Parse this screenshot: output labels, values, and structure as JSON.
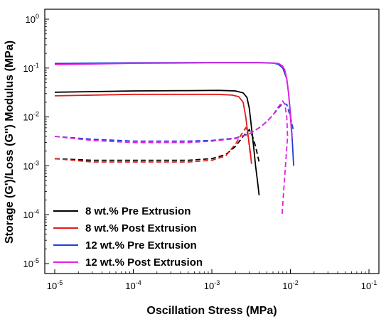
{
  "chart_data": {
    "type": "line",
    "xlabel": "Oscillation Stress (MPa)",
    "ylabel": "Storage (G')/Loss (G'') Modulus (MPa)",
    "xscale": "log",
    "yscale": "log",
    "xlim": [
      1e-05,
      0.1
    ],
    "ylim": [
      1e-05,
      1
    ],
    "x_ticks": [
      {
        "base": "10",
        "exp": "-5",
        "value": 1e-05
      },
      {
        "base": "10",
        "exp": "-4",
        "value": 0.0001
      },
      {
        "base": "10",
        "exp": "-3",
        "value": 0.001
      },
      {
        "base": "10",
        "exp": "-2",
        "value": 0.01
      },
      {
        "base": "10",
        "exp": "-1",
        "value": 0.1
      }
    ],
    "y_ticks": [
      {
        "base": "10",
        "exp": "-5",
        "value": 1e-05
      },
      {
        "base": "10",
        "exp": "-4",
        "value": 0.0001
      },
      {
        "base": "10",
        "exp": "-3",
        "value": 0.001
      },
      {
        "base": "10",
        "exp": "-2",
        "value": 0.01
      },
      {
        "base": "10",
        "exp": "-1",
        "value": 0.1
      },
      {
        "base": "10",
        "exp": "0",
        "value": 1
      }
    ],
    "legend_position": "bottom-left",
    "grid": false,
    "series": [
      {
        "name": "8 wt.% Pre Extrusion",
        "color": "#000000",
        "storage": {
          "x": [
            1e-05,
            0.0001,
            0.0005,
            0.0012,
            0.002,
            0.0025,
            0.0028,
            0.003,
            0.0032,
            0.0034,
            0.0036,
            0.0038,
            0.004
          ],
          "y": [
            0.032,
            0.034,
            0.0345,
            0.035,
            0.034,
            0.031,
            0.025,
            0.015,
            0.006,
            0.0025,
            0.001,
            0.0005,
            0.00025
          ]
        },
        "loss": {
          "x": [
            1e-05,
            3e-05,
            0.0001,
            0.0005,
            0.001,
            0.0015,
            0.002,
            0.0025,
            0.003,
            0.0033,
            0.0036,
            0.004
          ],
          "y": [
            0.0014,
            0.0013,
            0.0013,
            0.0013,
            0.0014,
            0.0017,
            0.0025,
            0.004,
            0.0055,
            0.004,
            0.0025,
            0.0012
          ]
        }
      },
      {
        "name": "8 wt.% Post Extrusion",
        "color": "#e31a1c",
        "storage": {
          "x": [
            1e-05,
            0.0001,
            0.0005,
            0.0012,
            0.0018,
            0.0022,
            0.0025,
            0.0027,
            0.0029,
            0.0031,
            0.0032
          ],
          "y": [
            0.027,
            0.029,
            0.029,
            0.029,
            0.028,
            0.026,
            0.02,
            0.01,
            0.004,
            0.0018,
            0.0011
          ]
        },
        "loss": {
          "x": [
            1e-05,
            3e-05,
            0.0001,
            0.0005,
            0.001,
            0.0015,
            0.002,
            0.0024,
            0.0027,
            0.0029,
            0.0031
          ],
          "y": [
            0.0014,
            0.0012,
            0.0012,
            0.0012,
            0.0013,
            0.0016,
            0.0028,
            0.0045,
            0.006,
            0.004,
            0.0016
          ]
        }
      },
      {
        "name": "12 wt.% Pre Extrusion",
        "color": "#1f3fd9",
        "storage": {
          "x": [
            1e-05,
            0.0001,
            0.001,
            0.004,
            0.006,
            0.007,
            0.008,
            0.009,
            0.0095,
            0.01,
            0.0105,
            0.011
          ],
          "y": [
            0.124,
            0.128,
            0.13,
            0.13,
            0.127,
            0.12,
            0.1,
            0.06,
            0.03,
            0.012,
            0.004,
            0.001
          ]
        },
        "loss": {
          "x": [
            1e-05,
            3e-05,
            0.0001,
            0.0005,
            0.001,
            0.002,
            0.003,
            0.004,
            0.005,
            0.006,
            0.007,
            0.008,
            0.009,
            0.01,
            0.011
          ],
          "y": [
            0.004,
            0.0035,
            0.0032,
            0.0032,
            0.0033,
            0.0037,
            0.0045,
            0.006,
            0.008,
            0.011,
            0.015,
            0.019,
            0.018,
            0.01,
            0.005
          ]
        }
      },
      {
        "name": "12 wt.% Post Extrusion",
        "color": "#e41ee4",
        "storage": {
          "x": [
            1e-05,
            0.0001,
            0.001,
            0.004,
            0.007,
            0.008,
            0.0085,
            0.009,
            0.0095,
            0.01,
            0.0105
          ],
          "y": [
            0.118,
            0.125,
            0.128,
            0.128,
            0.125,
            0.11,
            0.09,
            0.06,
            0.03,
            0.01,
            0.0035
          ]
        },
        "loss": {
          "x": [
            1e-05,
            3e-05,
            0.0001,
            0.0005,
            0.001,
            0.002,
            0.003,
            0.004,
            0.005,
            0.006,
            0.007,
            0.008,
            0.0085,
            0.009,
            0.0092,
            0.0088,
            0.0083,
            0.0078
          ],
          "y": [
            0.004,
            0.0033,
            0.003,
            0.003,
            0.0032,
            0.0036,
            0.0045,
            0.006,
            0.008,
            0.011,
            0.016,
            0.021,
            0.018,
            0.01,
            0.004,
            0.0015,
            0.0004,
            9e-05
          ]
        }
      }
    ]
  }
}
